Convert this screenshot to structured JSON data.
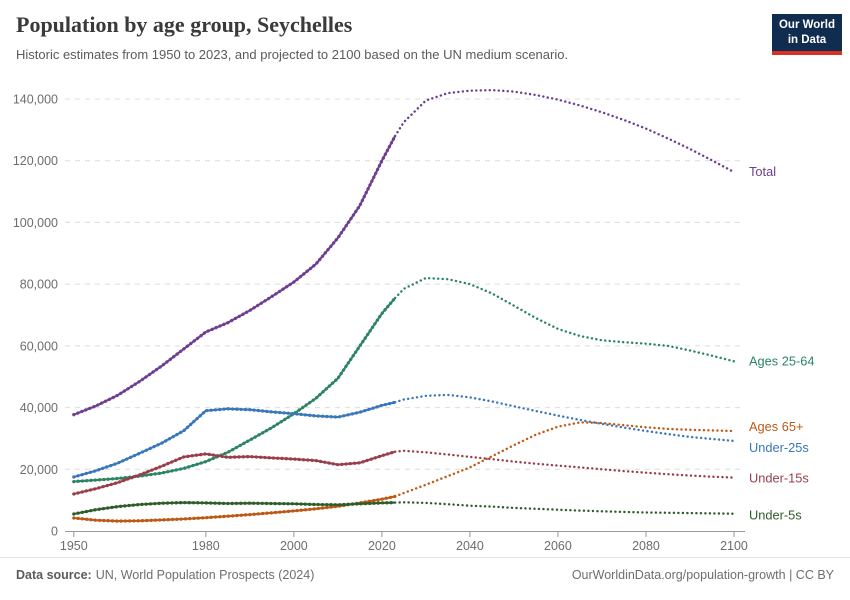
{
  "header": {
    "title": "Population by age group, Seychelles",
    "subtitle": "Historic estimates from 1950 to 2023, and projected to 2100 based on the UN medium scenario.",
    "logo": {
      "line1": "Our World",
      "line2": "in Data",
      "bg_color": "#102d50",
      "accent_color": "#d93025",
      "text_color": "#ffffff"
    }
  },
  "chart_data": {
    "type": "line",
    "title": "Population by age group, Seychelles",
    "grid": "horizontal-dashed",
    "legend_position": "right-of-line-ends",
    "historic_end_year": 2023,
    "projection_style": "dotted",
    "x_axis": {
      "range": [
        1948,
        2102.5
      ],
      "ticks": [
        1950,
        1980,
        2000,
        2020,
        2040,
        2060,
        2080,
        2100
      ]
    },
    "y_axis": {
      "range": [
        0,
        140000
      ],
      "ticks": [
        0,
        20000,
        40000,
        60000,
        80000,
        100000,
        120000,
        140000
      ],
      "tick_labels": [
        "0",
        "20,000",
        "40,000",
        "60,000",
        "80,000",
        "100,000",
        "120,000",
        "140,000"
      ]
    },
    "years": [
      1950,
      1955,
      1960,
      1965,
      1970,
      1975,
      1980,
      1985,
      1990,
      1995,
      2000,
      2005,
      2010,
      2015,
      2020,
      2023,
      2025,
      2030,
      2035,
      2040,
      2045,
      2050,
      2055,
      2060,
      2065,
      2070,
      2075,
      2080,
      2085,
      2090,
      2095,
      2100
    ],
    "series": [
      {
        "name": "Total",
        "color": "#6d3e91",
        "values": [
          37700,
          40500,
          44000,
          48500,
          53500,
          59000,
          64500,
          67500,
          71500,
          76000,
          80700,
          86500,
          95000,
          105500,
          120000,
          128000,
          132500,
          139500,
          141900,
          142700,
          142900,
          142400,
          141300,
          139800,
          137900,
          135700,
          133200,
          130400,
          127200,
          123800,
          120100,
          116300
        ]
      },
      {
        "name": "Ages 25-64",
        "color": "#2c8465",
        "values": [
          16000,
          16500,
          17000,
          17800,
          18800,
          20300,
          22500,
          25500,
          29500,
          33500,
          38000,
          43000,
          49500,
          60000,
          70500,
          75500,
          78500,
          82000,
          81600,
          80000,
          77000,
          73000,
          69000,
          65500,
          63200,
          61800,
          61200,
          60700,
          60000,
          58500,
          56800,
          55000
        ]
      },
      {
        "name": "Ages 65+",
        "color": "#be5915",
        "values": [
          4200,
          3500,
          3200,
          3300,
          3600,
          3900,
          4300,
          4800,
          5300,
          5900,
          6500,
          7200,
          8000,
          9100,
          10300,
          11200,
          12300,
          15000,
          17800,
          20600,
          24200,
          27800,
          31200,
          33800,
          35200,
          35000,
          34300,
          33600,
          33100,
          32800,
          32600,
          32400
        ]
      },
      {
        "name": "Under-25s",
        "color": "#3977bb",
        "values": [
          17500,
          19500,
          22000,
          25200,
          28500,
          32500,
          39000,
          39600,
          39300,
          38600,
          38000,
          37300,
          36900,
          38500,
          40700,
          41700,
          42600,
          43800,
          44100,
          43300,
          42000,
          40400,
          38900,
          37400,
          36000,
          34700,
          33500,
          32400,
          31400,
          30500,
          29800,
          29200
        ]
      },
      {
        "name": "Under-15s",
        "color": "#993d4a",
        "values": [
          12000,
          13700,
          15700,
          18200,
          21000,
          24000,
          25000,
          23900,
          24100,
          23700,
          23300,
          22800,
          21500,
          22100,
          24400,
          25700,
          26000,
          25500,
          24800,
          24000,
          23300,
          22500,
          21800,
          21200,
          20600,
          20000,
          19400,
          18900,
          18400,
          18000,
          17600,
          17300
        ]
      },
      {
        "name": "Under-5s",
        "color": "#2f5d2a",
        "values": [
          5500,
          6900,
          7900,
          8600,
          9000,
          9200,
          9100,
          8900,
          9000,
          8900,
          8800,
          8600,
          8500,
          8800,
          9100,
          9200,
          9300,
          9100,
          8700,
          8200,
          7900,
          7500,
          7200,
          6900,
          6600,
          6400,
          6200,
          6000,
          5900,
          5800,
          5700,
          5600
        ]
      }
    ]
  },
  "footer": {
    "source_label": "Data source:",
    "source_value": "UN, World Population Prospects (2024)",
    "link": "OurWorldinData.org/population-growth",
    "separator": " | ",
    "license": "CC BY"
  }
}
